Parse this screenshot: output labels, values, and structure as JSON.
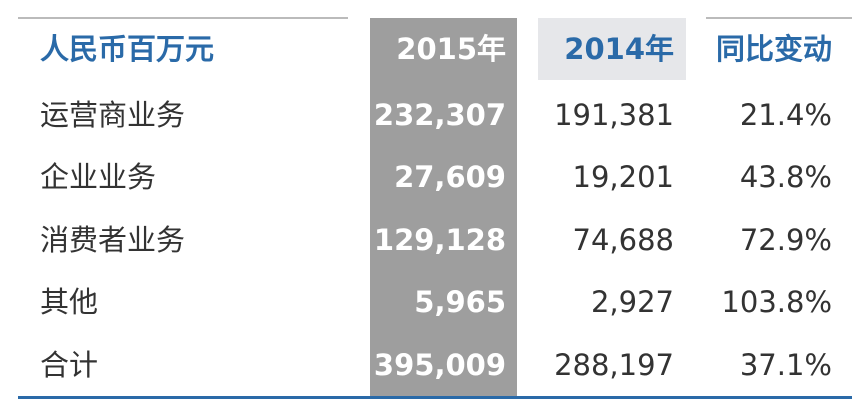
{
  "table": {
    "header": [
      "人民币百万元",
      "2015年",
      "2014年",
      "同比变动"
    ],
    "rows": [
      [
        "运营商业务",
        "232,307",
        "191,381",
        "21.4%"
      ],
      [
        "企业业务",
        "27,609",
        "19,201",
        "43.8%"
      ],
      [
        "消费者业务",
        "129,128",
        "74,688",
        "72.9%"
      ],
      [
        "其他",
        "5,965",
        "2,927",
        "103.8%"
      ],
      [
        "合计",
        "395,009",
        "288,197",
        "37.1%"
      ]
    ]
  }
}
